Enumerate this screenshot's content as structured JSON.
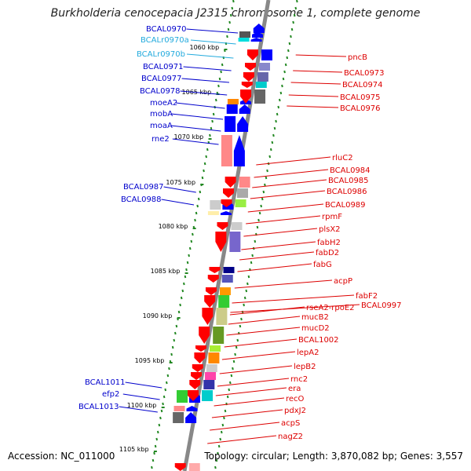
{
  "title": "Burkholderia cenocepacia J2315 chromosome 1, complete genome",
  "footer": {
    "accession": "Accession: NC_011000",
    "topology": "Topology: circular; Length: 3,870,082 bp; Genes: 3,557"
  },
  "ticks": [
    "1060 kbp",
    "1065 kbp",
    "1070 kbp",
    "1075 kbp",
    "1080 kbp",
    "1085 kbp",
    "1090 kbp",
    "1095 kbp",
    "1100 kbp",
    "1105 kbp"
  ],
  "left_genes": [
    "BCAL0970",
    "BCALr0970a",
    "BCALr0970b",
    "BCAL0971",
    "BCAL0977",
    "BCAL0978",
    "moeA2",
    "mobA",
    "moaA",
    "rne2",
    "BCAL0987",
    "BCAL0988",
    "BCAL1011",
    "efp2",
    "BCAL1013"
  ],
  "right_genes": [
    "pncB",
    "BCAL0973",
    "BCAL0974",
    "BCAL0975",
    "BCAL0976",
    "rluC2",
    "BCAL0984",
    "BCAL0985",
    "BCAL0986",
    "BCAL0989",
    "rpmF",
    "plsX2",
    "fabH2",
    "fabD2",
    "fabG",
    "acpP",
    "fabF2",
    "rseA2-rpoE2",
    "BCAL0997",
    "mucB2",
    "mucD2",
    "BCAL1002",
    "lepA2",
    "lepB2",
    "rnc2",
    "era",
    "recO",
    "pdxJ2",
    "acpS",
    "nagZ2"
  ],
  "colors": {
    "left_label": "#0000cc",
    "left_label_rna": "#22aadd",
    "right_label": "#dd0000",
    "backbone": "#888888",
    "dashes": "#228822",
    "forward_gene": "#0000ff",
    "reverse_gene": "#ff0000"
  }
}
